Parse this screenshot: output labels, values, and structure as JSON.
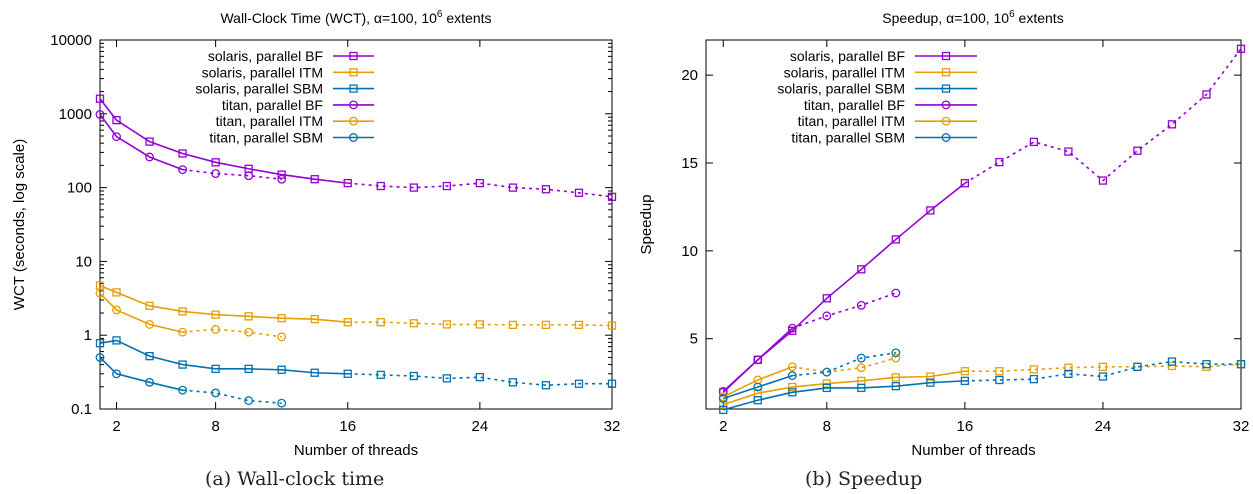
{
  "colors": {
    "bf": "#9400d3",
    "itm": "#e69f00",
    "sbm": "#0072b2"
  },
  "captions": {
    "a": "(a) Wall-clock time",
    "b": "(b) Speedup"
  },
  "chart_data": [
    {
      "type": "line",
      "title": "Wall-Clock Time (WCT), α=100, 10⁶ extents",
      "title_parts": {
        "main": "Wall-Clock Time (WCT), α=100, 10",
        "sup": "6",
        "tail": " extents"
      },
      "xlabel": "Number of threads",
      "ylabel": "WCT (seconds, log scale)",
      "yscale": "log",
      "xlim": [
        1,
        32
      ],
      "ylim": [
        0.1,
        10000
      ],
      "xticks": [
        2,
        8,
        16,
        24,
        32
      ],
      "yticks": [
        0.1,
        1,
        10,
        100,
        1000,
        10000
      ],
      "ytick_labels": [
        "0.1",
        "1",
        "10",
        "100",
        "1000",
        "10000"
      ],
      "legend_position": "top-right",
      "series": [
        {
          "name": "solaris, parallel BF",
          "color": "bf",
          "marker": "square",
          "x": [
            1,
            2,
            4,
            6,
            8,
            10,
            12,
            14,
            16,
            18,
            20,
            22,
            24,
            26,
            28,
            30,
            32
          ],
          "y": [
            1600,
            820,
            420,
            290,
            220,
            180,
            150,
            130,
            115,
            105,
            100,
            105,
            115,
            100,
            95,
            85,
            75
          ],
          "solid_until": 16
        },
        {
          "name": "solaris, parallel ITM",
          "color": "itm",
          "marker": "square",
          "x": [
            1,
            2,
            4,
            6,
            8,
            10,
            12,
            14,
            16,
            18,
            20,
            22,
            24,
            26,
            28,
            30,
            32
          ],
          "y": [
            4.7,
            3.8,
            2.5,
            2.1,
            1.9,
            1.8,
            1.7,
            1.65,
            1.5,
            1.5,
            1.45,
            1.4,
            1.4,
            1.38,
            1.38,
            1.38,
            1.35
          ],
          "solid_until": 16
        },
        {
          "name": "solaris, parallel SBM",
          "color": "sbm",
          "marker": "square",
          "x": [
            1,
            2,
            4,
            6,
            8,
            10,
            12,
            14,
            16,
            18,
            20,
            22,
            24,
            26,
            28,
            30,
            32
          ],
          "y": [
            0.78,
            0.85,
            0.52,
            0.4,
            0.35,
            0.35,
            0.34,
            0.31,
            0.3,
            0.29,
            0.28,
            0.26,
            0.27,
            0.23,
            0.21,
            0.22,
            0.22
          ],
          "solid_until": 16
        },
        {
          "name": "titan, parallel BF",
          "color": "bf",
          "marker": "circle",
          "x": [
            1,
            2,
            4,
            6,
            8,
            10,
            12
          ],
          "y": [
            980,
            490,
            260,
            175,
            155,
            145,
            130
          ],
          "solid_until": 6
        },
        {
          "name": "titan, parallel ITM",
          "color": "itm",
          "marker": "circle",
          "x": [
            1,
            2,
            4,
            6,
            8,
            10,
            12
          ],
          "y": [
            3.7,
            2.2,
            1.4,
            1.1,
            1.2,
            1.1,
            0.95
          ],
          "solid_until": 6
        },
        {
          "name": "titan, parallel SBM",
          "color": "sbm",
          "marker": "circle",
          "x": [
            1,
            2,
            4,
            6,
            8,
            10,
            12
          ],
          "y": [
            0.5,
            0.3,
            0.23,
            0.18,
            0.165,
            0.13,
            0.12
          ],
          "solid_until": 6
        }
      ]
    },
    {
      "type": "line",
      "title": "Speedup, α=100, 10⁶ extents",
      "title_parts": {
        "main": "Speedup, α=100, 10",
        "sup": "6",
        "tail": " extents"
      },
      "xlabel": "Number of threads",
      "ylabel": "Speedup",
      "yscale": "linear",
      "xlim": [
        1,
        32
      ],
      "ylim": [
        1,
        22
      ],
      "xticks": [
        2,
        8,
        16,
        24,
        32
      ],
      "yticks": [
        5,
        10,
        15,
        20
      ],
      "ytick_labels": [
        "5",
        "10",
        "15",
        "20"
      ],
      "legend_position": "top-left",
      "series": [
        {
          "name": "solaris, parallel BF",
          "color": "bf",
          "marker": "square",
          "x": [
            2,
            4,
            6,
            8,
            10,
            12,
            14,
            16,
            18,
            20,
            22,
            24,
            26,
            28,
            30,
            32
          ],
          "y": [
            1.95,
            3.8,
            5.45,
            7.3,
            8.95,
            10.65,
            12.3,
            13.85,
            15.05,
            16.2,
            15.65,
            14.0,
            15.7,
            17.2,
            18.9,
            21.5
          ],
          "solid_until": 16
        },
        {
          "name": "solaris, parallel ITM",
          "color": "itm",
          "marker": "square",
          "x": [
            2,
            4,
            6,
            8,
            10,
            12,
            14,
            16,
            18,
            20,
            22,
            24,
            26,
            28,
            30,
            32
          ],
          "y": [
            1.25,
            1.9,
            2.25,
            2.45,
            2.6,
            2.8,
            2.85,
            3.15,
            3.15,
            3.25,
            3.35,
            3.4,
            3.4,
            3.45,
            3.4,
            3.55
          ],
          "solid_until": 16
        },
        {
          "name": "solaris, parallel SBM",
          "color": "sbm",
          "marker": "square",
          "x": [
            2,
            4,
            6,
            8,
            10,
            12,
            14,
            16,
            18,
            20,
            22,
            24,
            26,
            28,
            30,
            32
          ],
          "y": [
            0.95,
            1.5,
            1.95,
            2.2,
            2.2,
            2.3,
            2.5,
            2.6,
            2.65,
            2.7,
            3.0,
            2.85,
            3.4,
            3.7,
            3.55,
            3.55
          ],
          "solid_until": 16
        },
        {
          "name": "titan, parallel BF",
          "color": "bf",
          "marker": "circle",
          "x": [
            2,
            4,
            6,
            8,
            10,
            12
          ],
          "y": [
            2.0,
            3.8,
            5.6,
            6.3,
            6.9,
            7.6
          ],
          "solid_until": 6
        },
        {
          "name": "titan, parallel ITM",
          "color": "itm",
          "marker": "circle",
          "x": [
            2,
            4,
            6,
            8,
            10,
            12
          ],
          "y": [
            1.7,
            2.65,
            3.4,
            3.1,
            3.35,
            3.9
          ],
          "solid_until": 6
        },
        {
          "name": "titan, parallel SBM",
          "color": "sbm",
          "marker": "circle",
          "x": [
            2,
            4,
            6,
            8,
            10,
            12
          ],
          "y": [
            1.6,
            2.25,
            2.9,
            3.1,
            3.9,
            4.2
          ],
          "solid_until": 6
        }
      ]
    }
  ]
}
